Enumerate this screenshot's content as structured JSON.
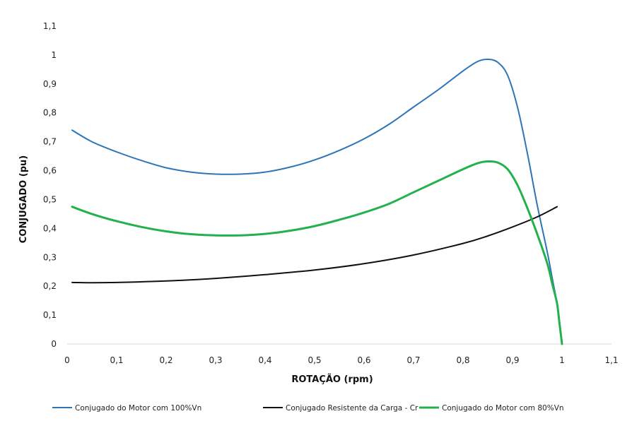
{
  "chart_data": {
    "type": "line",
    "title": "",
    "xlabel": "ROTAÇÃO (rpm)",
    "ylabel": "CONJUGADO (pu)",
    "xlim": [
      0,
      1.1
    ],
    "ylim": [
      0,
      1.1
    ],
    "x_ticks": [
      "0",
      "0,1",
      "0,2",
      "0,3",
      "0,4",
      "0,5",
      "0,6",
      "0,7",
      "0,8",
      "0,9",
      "1",
      "1,1"
    ],
    "y_ticks": [
      "0",
      "0,1",
      "0,2",
      "0,3",
      "0,4",
      "0,5",
      "0,6",
      "0,7",
      "0,8",
      "0,9",
      "1",
      "1,1"
    ],
    "grid": false,
    "legend_position": "bottom",
    "series": [
      {
        "name": "Conjugado do Motor com 100%Vn",
        "color": "#2e75b6",
        "x": [
          0.01,
          0.05,
          0.1,
          0.15,
          0.2,
          0.25,
          0.3,
          0.35,
          0.4,
          0.45,
          0.5,
          0.55,
          0.6,
          0.65,
          0.7,
          0.75,
          0.8,
          0.83,
          0.85,
          0.87,
          0.89,
          0.91,
          0.93,
          0.95,
          0.97,
          0.98,
          0.99,
          0.995,
          1.0
        ],
        "y": [
          0.74,
          0.7,
          0.665,
          0.635,
          0.61,
          0.595,
          0.588,
          0.588,
          0.595,
          0.612,
          0.637,
          0.67,
          0.71,
          0.76,
          0.82,
          0.88,
          0.945,
          0.978,
          0.985,
          0.975,
          0.93,
          0.82,
          0.66,
          0.48,
          0.32,
          0.23,
          0.14,
          0.07,
          0.0
        ]
      },
      {
        "name": "Conjugado Resistente da Carga - Cr",
        "color": "#111111",
        "x": [
          0.01,
          0.05,
          0.1,
          0.2,
          0.3,
          0.4,
          0.5,
          0.6,
          0.7,
          0.8,
          0.85,
          0.9,
          0.95,
          0.99
        ],
        "y": [
          0.213,
          0.212,
          0.213,
          0.218,
          0.227,
          0.24,
          0.256,
          0.278,
          0.308,
          0.348,
          0.374,
          0.405,
          0.44,
          0.475
        ]
      },
      {
        "name": "Conjugado do Motor com 80%Vn",
        "color": "#22b14c",
        "x": [
          0.01,
          0.05,
          0.1,
          0.15,
          0.2,
          0.25,
          0.3,
          0.35,
          0.4,
          0.45,
          0.5,
          0.55,
          0.6,
          0.65,
          0.7,
          0.75,
          0.8,
          0.83,
          0.85,
          0.87,
          0.89,
          0.91,
          0.93,
          0.95,
          0.97,
          0.98,
          0.99,
          0.995,
          1.0
        ],
        "y": [
          0.475,
          0.45,
          0.425,
          0.405,
          0.39,
          0.38,
          0.376,
          0.376,
          0.381,
          0.392,
          0.408,
          0.43,
          0.455,
          0.485,
          0.525,
          0.565,
          0.605,
          0.626,
          0.632,
          0.628,
          0.605,
          0.55,
          0.47,
          0.38,
          0.28,
          0.21,
          0.14,
          0.07,
          0.0
        ]
      }
    ]
  }
}
